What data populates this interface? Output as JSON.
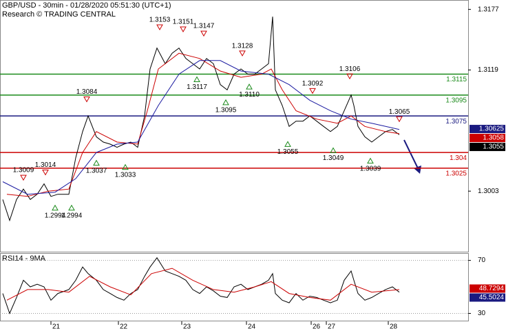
{
  "chart_data": [
    {
      "type": "line",
      "title": "GBP/USD - 30min - 01/28/2020 05:51:30 (UTC+1)",
      "subtitle": "Research © TRADING CENTRAL",
      "xlim": [
        0,
        340
      ],
      "ylim": [
        1.2947,
        1.3186
      ],
      "yticks": [
        1.3003,
        1.3119,
        1.3177
      ],
      "series": [
        {
          "color": "#000000",
          "x": [
            2,
            7,
            12,
            17,
            22,
            27,
            32,
            37,
            42,
            50,
            55,
            60,
            64,
            70,
            75,
            80,
            85,
            90,
            95,
            100,
            105,
            109,
            114,
            120,
            125,
            130,
            135,
            140,
            145,
            150,
            155,
            160,
            165,
            170,
            175,
            180,
            185,
            190,
            195,
            198,
            200,
            205,
            210,
            215,
            220,
            225,
            230,
            235,
            240,
            245,
            250,
            255,
            257,
            260,
            265,
            270,
            275,
            280,
            285,
            290
          ],
          "values": [
            1.2995,
            1.2975,
            1.2995,
            1.3005,
            1.2995,
            1.3,
            1.301,
            1.2998,
            1.3,
            1.3,
            1.3035,
            1.306,
            1.3075,
            1.3055,
            1.305,
            1.3048,
            1.3045,
            1.3048,
            1.305,
            1.3045,
            1.3075,
            1.312,
            1.314,
            1.3125,
            1.3135,
            1.314,
            1.313,
            1.3125,
            1.312,
            1.313,
            1.3125,
            1.3105,
            1.31,
            1.3115,
            1.312,
            1.3115,
            1.3115,
            1.312,
            1.3125,
            1.317,
            1.31,
            1.3085,
            1.3065,
            1.307,
            1.307,
            1.3075,
            1.307,
            1.3065,
            1.306,
            1.3065,
            1.308,
            1.3095,
            1.3085,
            1.3065,
            1.3055,
            1.305,
            1.3055,
            1.306,
            1.3062,
            1.3057
          ]
        },
        {
          "color": "#cc0000",
          "x": [
            5,
            20,
            35,
            50,
            60,
            70,
            85,
            100,
            107,
            115,
            130,
            145,
            160,
            175,
            190,
            197,
            205,
            215,
            230,
            245,
            255,
            265,
            280,
            290
          ],
          "values": [
            1.3,
            1.2998,
            1.3003,
            1.3005,
            1.304,
            1.306,
            1.305,
            1.3048,
            1.308,
            1.312,
            1.3135,
            1.313,
            1.3118,
            1.3112,
            1.3115,
            1.312,
            1.31,
            1.308,
            1.3072,
            1.3068,
            1.3075,
            1.3065,
            1.306,
            1.3058
          ]
        },
        {
          "color": "#1a1aa0",
          "x": [
            2,
            20,
            40,
            55,
            70,
            85,
            100,
            115,
            130,
            145,
            160,
            175,
            195,
            210,
            225,
            240,
            255,
            270,
            290
          ],
          "values": [
            1.3012,
            1.3,
            1.3002,
            1.3015,
            1.304,
            1.3048,
            1.305,
            1.3085,
            1.3115,
            1.3128,
            1.3128,
            1.3118,
            1.3115,
            1.3105,
            1.309,
            1.308,
            1.3072,
            1.3068,
            1.3062
          ]
        }
      ],
      "levels": [
        {
          "value": 1.3115,
          "color": "#1a8a1a"
        },
        {
          "value": 1.3095,
          "color": "#1a8a1a"
        },
        {
          "value": 1.3075,
          "color": "#1a1a80"
        },
        {
          "value": 1.304,
          "color": "#cc0000"
        },
        {
          "value": 1.3025,
          "color": "#cc0000"
        }
      ],
      "annotations": [
        {
          "x": 17,
          "value": 1.3009,
          "kind": "high"
        },
        {
          "x": 33,
          "value": 1.3014,
          "kind": "high"
        },
        {
          "x": 63,
          "value": 1.3084,
          "kind": "high"
        },
        {
          "x": 116,
          "value": 1.3153,
          "kind": "high"
        },
        {
          "x": 133,
          "value": 1.3151,
          "kind": "high"
        },
        {
          "x": 148,
          "value": 1.3147,
          "kind": "high"
        },
        {
          "x": 176,
          "value": 1.3128,
          "kind": "high"
        },
        {
          "x": 227,
          "value": 1.3092,
          "kind": "high"
        },
        {
          "x": 254,
          "value": 1.3106,
          "kind": "high"
        },
        {
          "x": 290,
          "value": 1.3065,
          "kind": "high"
        },
        {
          "x": 40,
          "value": 1.2994,
          "kind": "low"
        },
        {
          "x": 52,
          "value": 1.2994,
          "kind": "low"
        },
        {
          "x": 70,
          "value": 1.3037,
          "kind": "low"
        },
        {
          "x": 91,
          "value": 1.3033,
          "kind": "low"
        },
        {
          "x": 143,
          "value": 1.3117,
          "kind": "low"
        },
        {
          "x": 164,
          "value": 1.3095,
          "kind": "low"
        },
        {
          "x": 181,
          "value": {
            "value": 1.311,
            "label": "1.3110"
          },
          "kind": "low"
        },
        {
          "x": 209,
          "value": 1.3055,
          "kind": "low"
        },
        {
          "x": 242,
          "value": 1.3049,
          "kind": "low"
        },
        {
          "x": 269,
          "value": 1.3039,
          "kind": "low"
        }
      ],
      "price_labels": [
        {
          "value": 1.30625,
          "color": "#1a1a80"
        },
        {
          "value": 1.3058,
          "color": "#cc0000"
        },
        {
          "value": 1.3055,
          "color": "#000000"
        }
      ]
    },
    {
      "type": "line",
      "title": "RSI14 - 9MA",
      "xlim": [
        0,
        340
      ],
      "ylim": [
        24,
        75
      ],
      "yticks": [
        30,
        70
      ],
      "xticks": [
        {
          "value": 37,
          "label": "21"
        },
        {
          "value": 86,
          "label": "22"
        },
        {
          "value": 132,
          "label": "23"
        },
        {
          "value": 179,
          "label": "24"
        },
        {
          "value": 226,
          "label": "26"
        },
        {
          "value": 237,
          "label": "27"
        },
        {
          "value": 282,
          "label": "28"
        }
      ],
      "series": [
        {
          "color": "#000000",
          "x": [
            2,
            7,
            12,
            17,
            22,
            27,
            32,
            37,
            42,
            50,
            55,
            60,
            64,
            70,
            75,
            80,
            85,
            90,
            95,
            100,
            105,
            109,
            114,
            120,
            125,
            130,
            135,
            140,
            145,
            150,
            155,
            160,
            165,
            170,
            175,
            180,
            185,
            190,
            195,
            198,
            200,
            205,
            210,
            215,
            220,
            225,
            230,
            235,
            240,
            245,
            250,
            255,
            257,
            260,
            265,
            270,
            275,
            280,
            285,
            290
          ],
          "values": [
            45,
            30,
            42,
            55,
            50,
            52,
            50,
            40,
            45,
            48,
            55,
            65,
            60,
            55,
            48,
            45,
            42,
            40,
            45,
            48,
            58,
            65,
            72,
            62,
            60,
            58,
            55,
            48,
            45,
            50,
            47,
            43,
            42,
            50,
            52,
            48,
            50,
            52,
            55,
            60,
            45,
            40,
            38,
            45,
            40,
            43,
            42,
            40,
            38,
            40,
            55,
            62,
            55,
            45,
            40,
            42,
            45,
            48,
            50,
            46
          ]
        },
        {
          "color": "#cc0000",
          "x": [
            5,
            20,
            35,
            50,
            65,
            80,
            95,
            110,
            125,
            140,
            155,
            170,
            185,
            197,
            210,
            225,
            240,
            255,
            270,
            290
          ],
          "values": [
            40,
            48,
            48,
            46,
            58,
            50,
            44,
            60,
            64,
            55,
            48,
            46,
            50,
            54,
            45,
            42,
            40,
            52,
            46,
            48
          ]
        }
      ],
      "price_labels": [
        {
          "value": 48.7294,
          "color": "#cc0000"
        },
        {
          "value": 45.5024,
          "color": "#1a1a80"
        }
      ]
    }
  ]
}
